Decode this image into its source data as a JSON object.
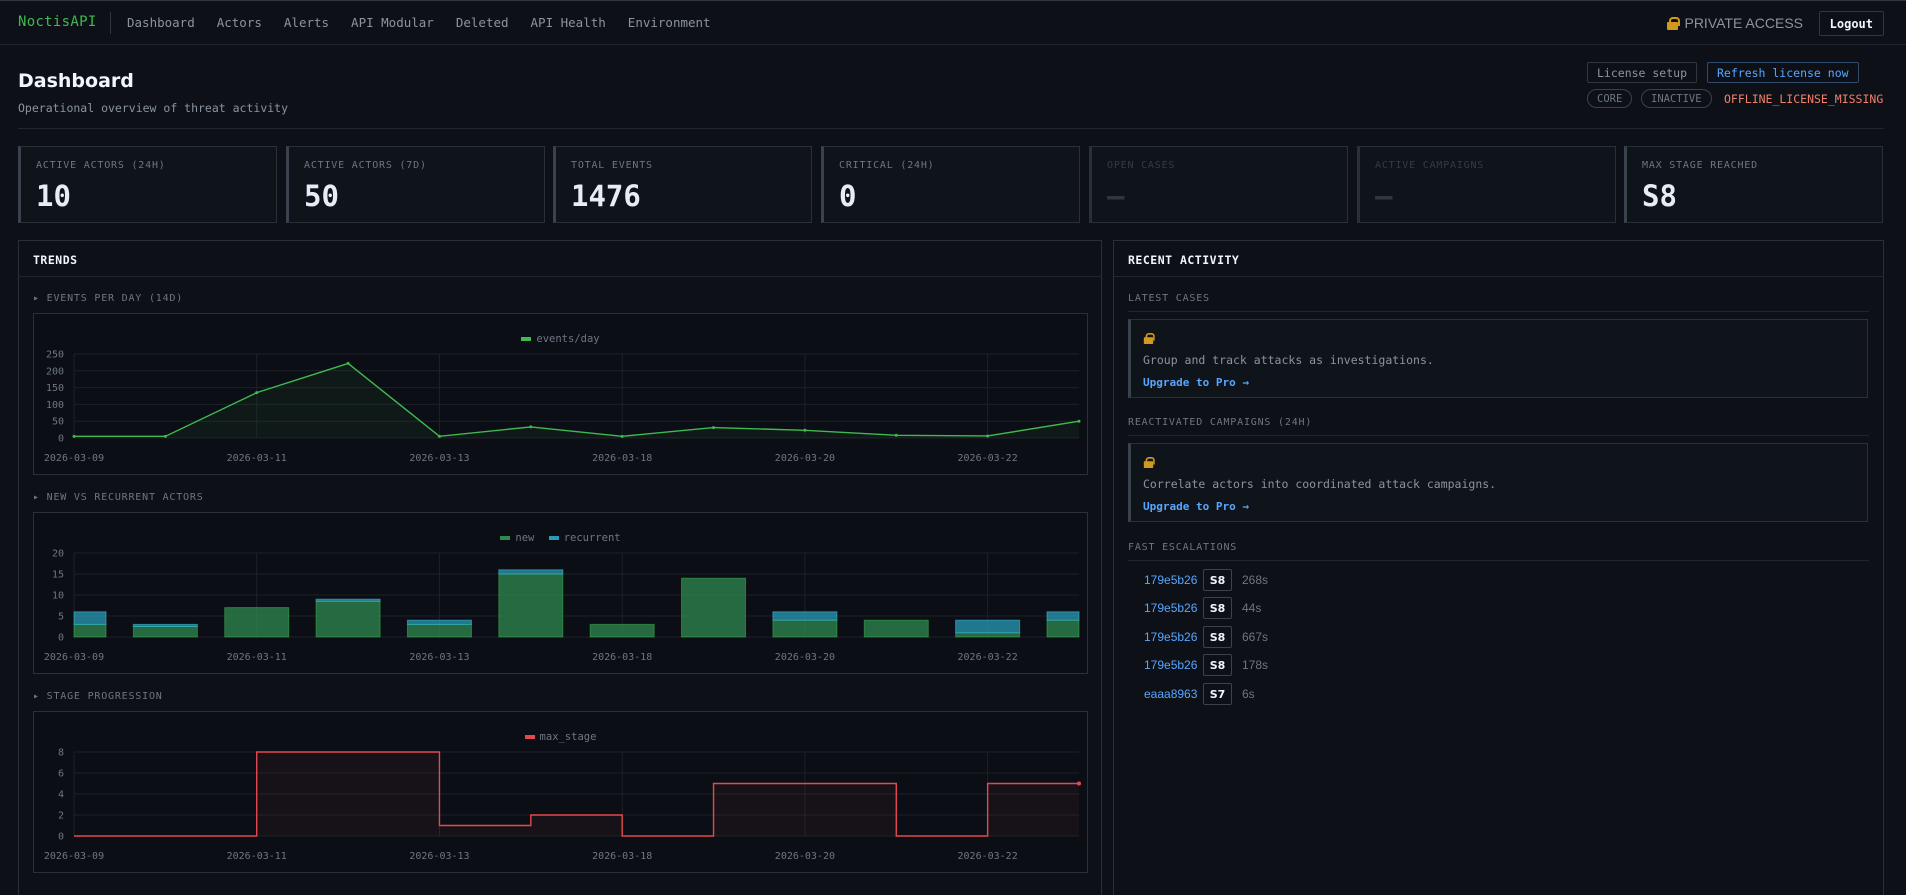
{
  "nav": {
    "brand": "NoctisAPI",
    "items": [
      "Dashboard",
      "Actors",
      "Alerts",
      "API Modular",
      "Deleted",
      "API Health",
      "Environment"
    ],
    "private_access": "PRIVATE ACCESS",
    "logout": "Logout"
  },
  "header": {
    "title": "Dashboard",
    "subtitle": "Operational overview of threat activity",
    "license_setup": "License setup",
    "refresh_license": "Refresh license now",
    "plan_badge": "CORE",
    "status_badge": "INACTIVE",
    "license_error": "OFFLINE_LICENSE_MISSING"
  },
  "stats": [
    {
      "label": "ACTIVE ACTORS (24H)",
      "value": "10",
      "enabled": true
    },
    {
      "label": "ACTIVE ACTORS (7D)",
      "value": "50",
      "enabled": true
    },
    {
      "label": "TOTAL EVENTS",
      "value": "1476",
      "enabled": true
    },
    {
      "label": "CRITICAL (24H)",
      "value": "0",
      "enabled": true
    },
    {
      "label": "OPEN CASES",
      "value": "—",
      "enabled": false
    },
    {
      "label": "ACTIVE CAMPAIGNS",
      "value": "—",
      "enabled": false
    },
    {
      "label": "MAX STAGE REACHED",
      "value": "S8",
      "enabled": true
    }
  ],
  "trends": {
    "title": "TRENDS",
    "sections": [
      "▸ EVENTS PER DAY (14D)",
      "▸ NEW VS RECURRENT ACTORS",
      "▸ STAGE PROGRESSION"
    ]
  },
  "colors": {
    "events": "#3fb950",
    "new": "#2f8a4f",
    "recurrent": "#2a9bb5",
    "stage": "#e5484d"
  },
  "chart_data": [
    {
      "type": "line",
      "legend": [
        "events/day"
      ],
      "x_tick_labels": [
        "2026-03-09",
        "2026-03-11",
        "2026-03-13",
        "2026-03-18",
        "2026-03-20",
        "2026-03-22"
      ],
      "y_ticks": [
        0,
        50,
        100,
        150,
        200,
        250
      ],
      "ylim": [
        0,
        250
      ],
      "series": [
        {
          "name": "events/day",
          "values": [
            5,
            5,
            135,
            222,
            5,
            33,
            5,
            31,
            23,
            8,
            6,
            50
          ]
        }
      ]
    },
    {
      "type": "bar",
      "stacked": true,
      "legend": [
        "new",
        "recurrent"
      ],
      "x_tick_labels": [
        "2026-03-09",
        "2026-03-11",
        "2026-03-13",
        "2026-03-18",
        "2026-03-20",
        "2026-03-22"
      ],
      "y_ticks": [
        0,
        5,
        10,
        15,
        20
      ],
      "ylim": [
        0,
        20
      ],
      "series": [
        {
          "name": "new",
          "values": [
            3,
            2.5,
            7,
            8.5,
            3,
            15,
            3,
            14,
            4,
            4,
            1,
            4
          ]
        },
        {
          "name": "recurrent",
          "values": [
            3,
            0.5,
            0,
            0.5,
            1,
            1,
            0,
            0,
            2,
            0,
            3,
            2
          ]
        }
      ]
    },
    {
      "type": "line",
      "step": true,
      "legend": [
        "max_stage"
      ],
      "x_tick_labels": [
        "2026-03-09",
        "2026-03-11",
        "2026-03-13",
        "2026-03-18",
        "2026-03-20",
        "2026-03-22"
      ],
      "y_ticks": [
        0,
        2,
        4,
        6,
        8
      ],
      "ylim": [
        0,
        8
      ],
      "series": [
        {
          "name": "max_stage",
          "values": [
            0,
            0,
            8,
            8,
            1,
            2,
            0,
            5,
            5,
            0,
            5,
            5
          ]
        }
      ]
    }
  ],
  "recent": {
    "title": "RECENT ACTIVITY",
    "latest_cases_label": "LATEST CASES",
    "latest_cases_text": "Group and track attacks as investigations.",
    "reactivated_label": "REACTIVATED CAMPAIGNS (24H)",
    "reactivated_text": "Correlate actors into coordinated attack campaigns.",
    "upgrade_link": "Upgrade to Pro →",
    "fast_label": "FAST ESCALATIONS",
    "escalations": [
      {
        "id": "179e5b26",
        "stage": "S8",
        "time": "268s"
      },
      {
        "id": "179e5b26",
        "stage": "S8",
        "time": "44s"
      },
      {
        "id": "179e5b26",
        "stage": "S8",
        "time": "667s"
      },
      {
        "id": "179e5b26",
        "stage": "S8",
        "time": "178s"
      },
      {
        "id": "eaaa8963",
        "stage": "S7",
        "time": "6s"
      }
    ]
  }
}
